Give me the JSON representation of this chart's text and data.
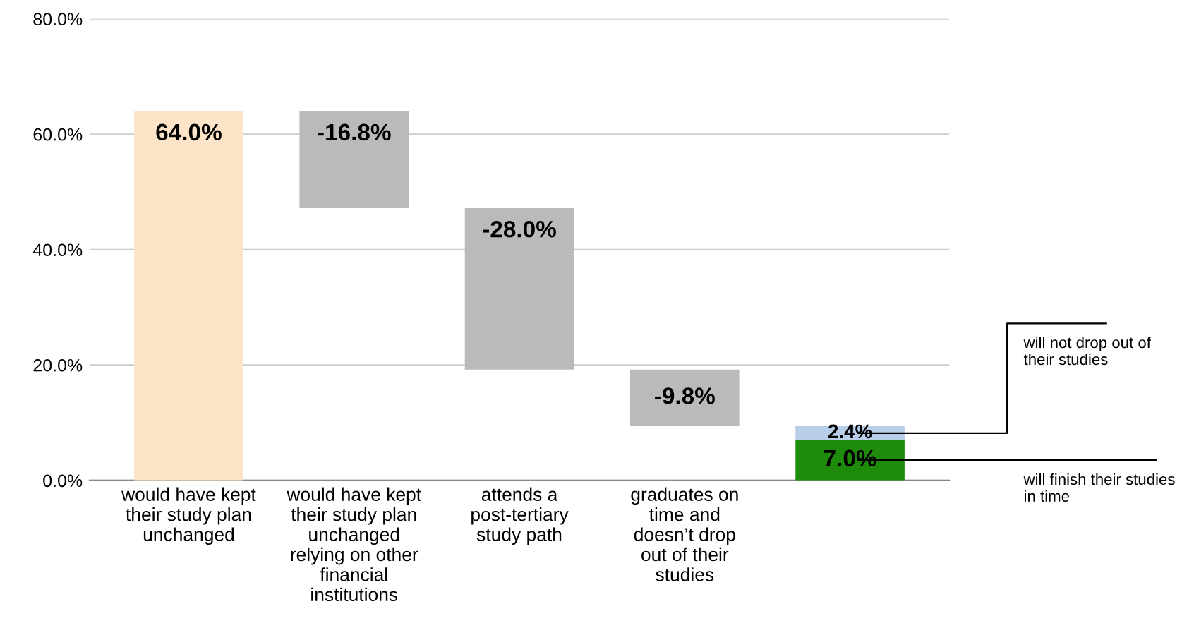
{
  "chart_data": {
    "type": "bar",
    "categories": [
      "would have kept\ntheir study plan\nunchanged",
      "would have kept\ntheir study plan\nunchanged\nrelying on other\nfinancial\ninstitutions",
      "attends a\npost-tertiary\nstudy path",
      "graduates on\ntime and\ndoesn’t drop\nout of their\nstudies",
      null
    ],
    "series": [
      {
        "values": [
          64.0,
          -16.8,
          -28.0,
          -9.8,
          7.0
        ],
        "base": [
          0,
          64.0,
          47.2,
          19.2,
          0
        ],
        "colors": [
          "#fde3c8",
          "#bababa",
          "#bababa",
          "#bababa",
          "#1e8c0a"
        ],
        "value_labels": [
          "64.0%",
          "-16.8%",
          "-28.0%",
          "-9.8%",
          "7.0%"
        ]
      },
      {
        "values": [
          null,
          null,
          null,
          null,
          2.4
        ],
        "base": [
          null,
          null,
          null,
          null,
          7.0
        ],
        "color": "#b8cde8",
        "value_labels": [
          null,
          null,
          null,
          null,
          "2.4%"
        ]
      }
    ],
    "ylim": [
      0,
      80
    ],
    "yticks": [
      {
        "value": 0,
        "label": "0.0%"
      },
      {
        "value": 20,
        "label": "20.0%"
      },
      {
        "value": 40,
        "label": "40.0%"
      },
      {
        "value": 60,
        "label": "60.0%"
      },
      {
        "value": 80,
        "label": "80.0%"
      }
    ],
    "grid": "y",
    "annotations": [
      "will not drop out of\ntheir studies",
      "will finish their studies\nin time"
    ]
  }
}
